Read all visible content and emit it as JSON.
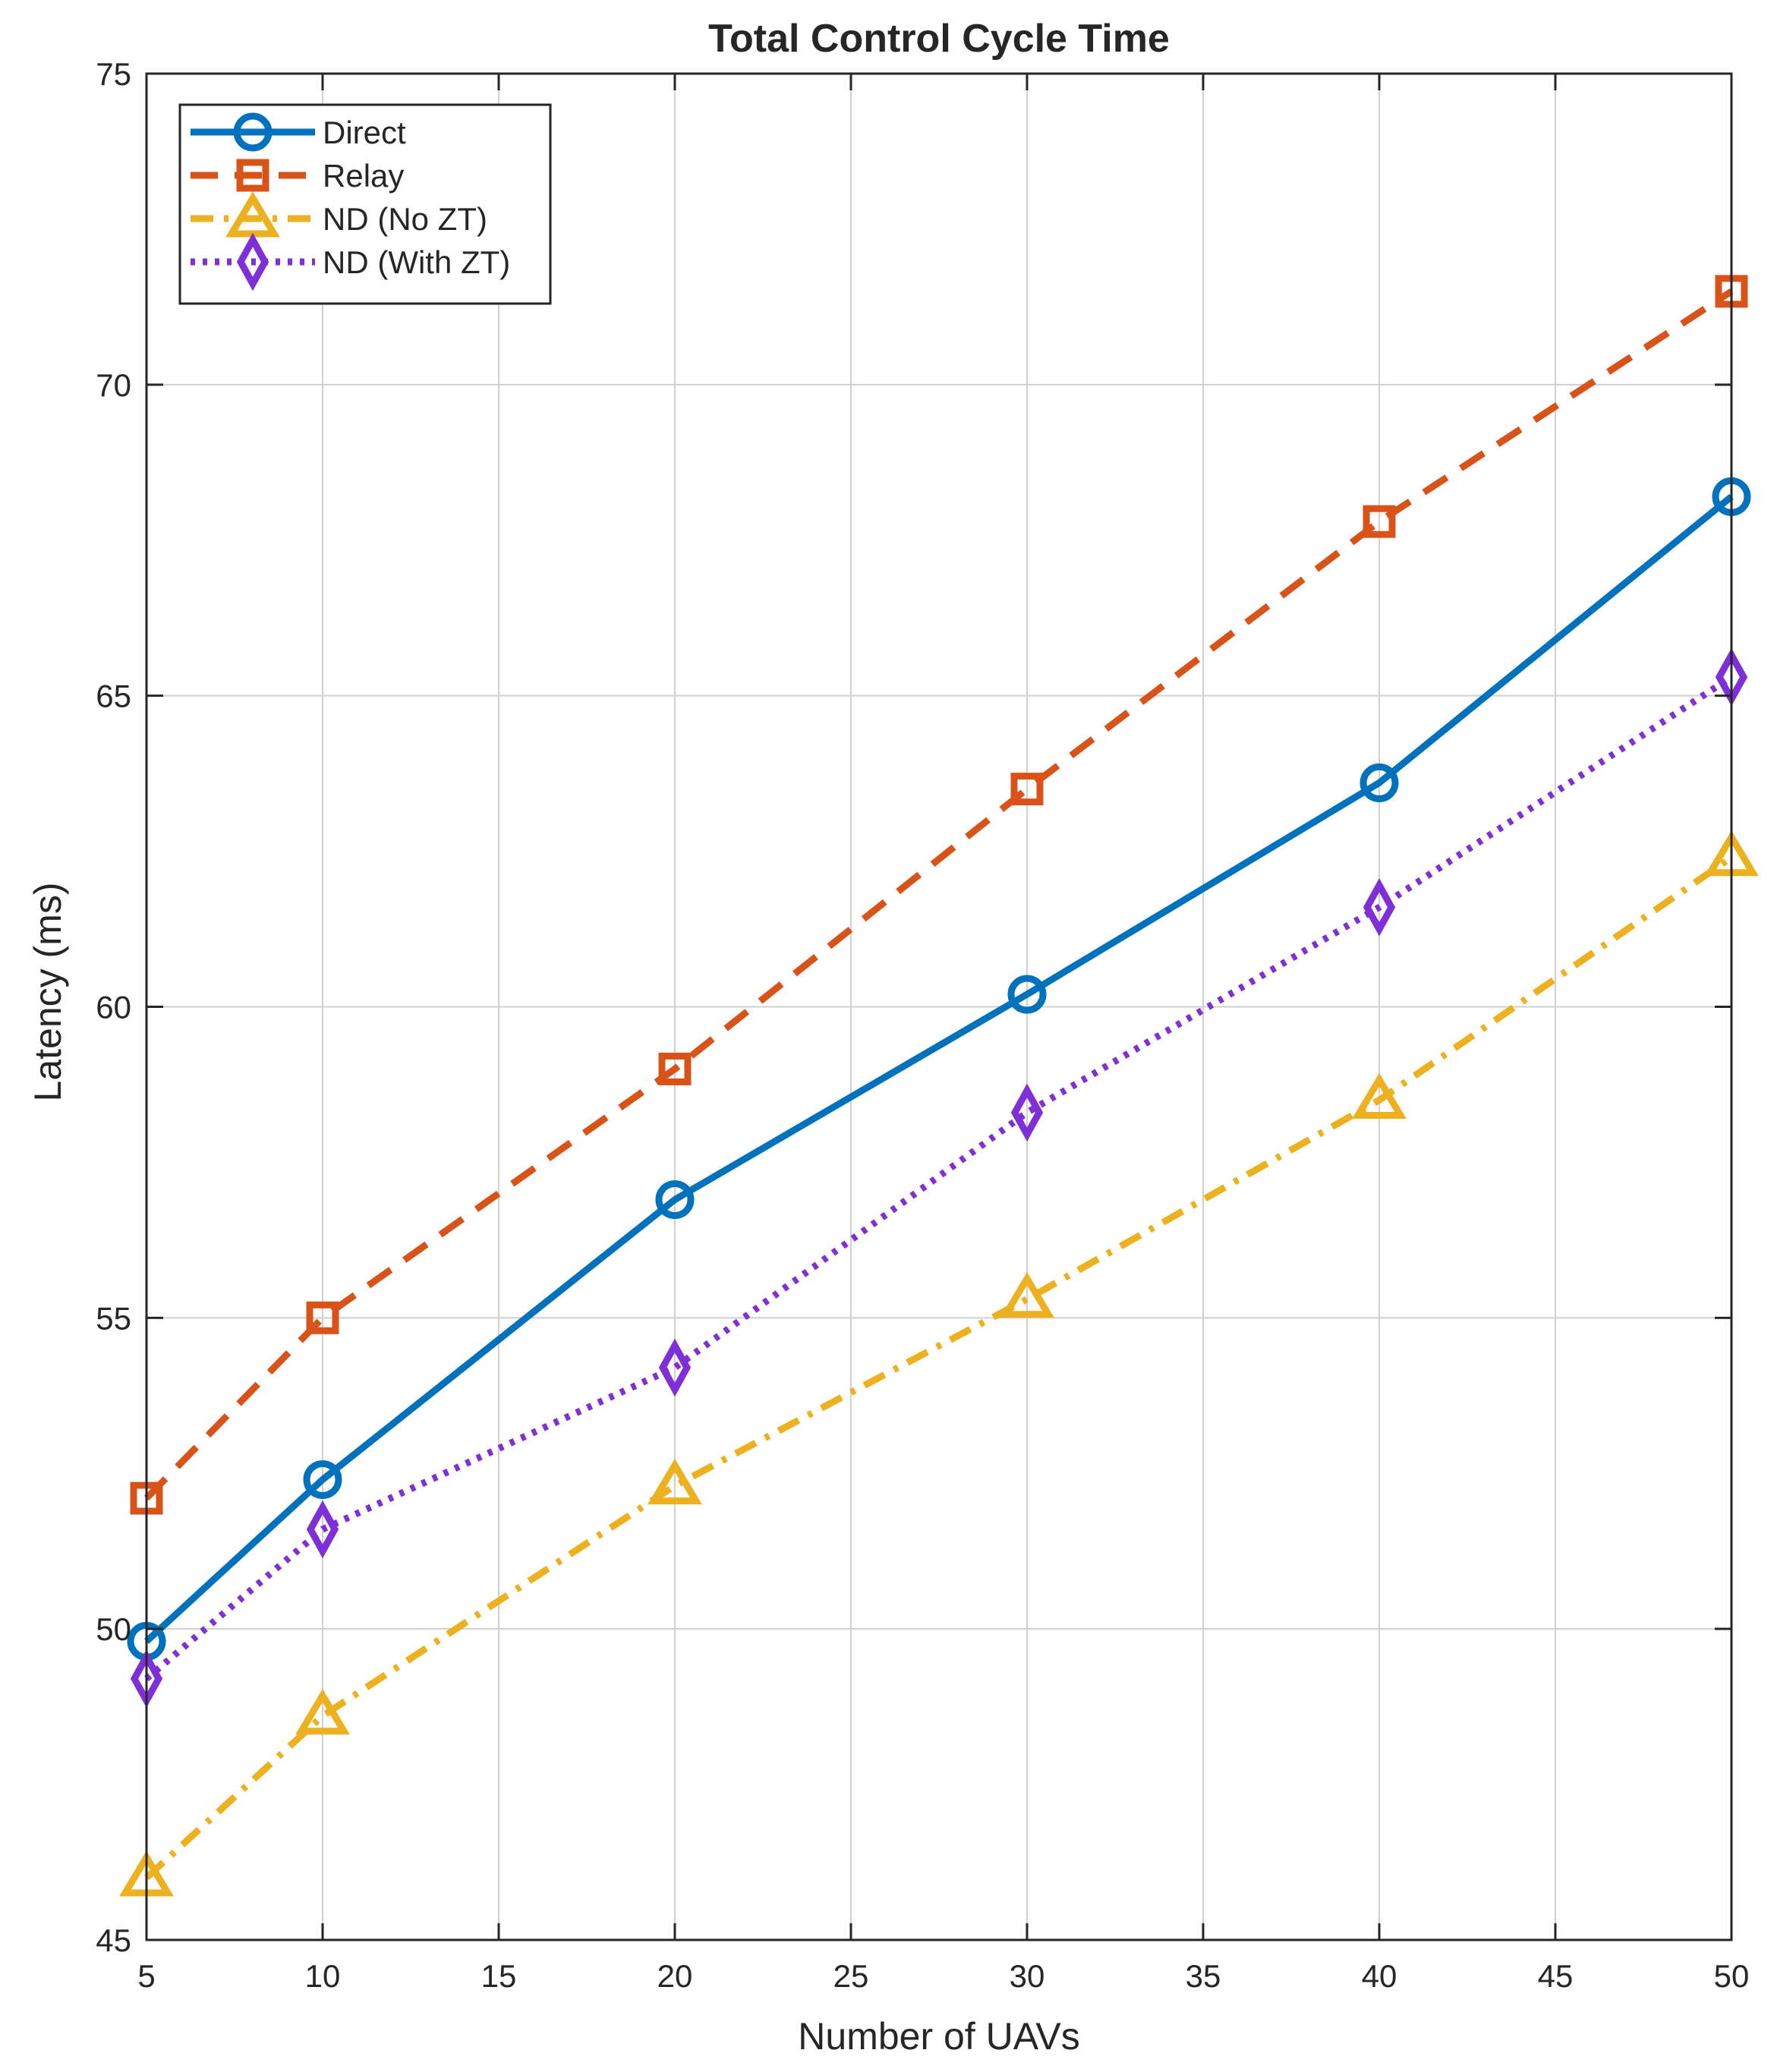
{
  "chart_data": {
    "type": "line",
    "title": "Total Control Cycle Time",
    "xlabel": "Number of UAVs",
    "ylabel": "Latency (ms)",
    "x": [
      5,
      10,
      20,
      30,
      40,
      50
    ],
    "xlim": [
      5,
      50
    ],
    "ylim": [
      45,
      75
    ],
    "xticks": [
      5,
      10,
      15,
      20,
      25,
      30,
      35,
      40,
      45,
      50
    ],
    "yticks": [
      45,
      50,
      55,
      60,
      65,
      70,
      75
    ],
    "grid": true,
    "legend_position": "top-left",
    "series": [
      {
        "name": "Direct",
        "values": [
          49.8,
          52.4,
          56.9,
          60.2,
          63.6,
          68.2
        ],
        "color": "#0072BD",
        "marker": "circle",
        "dash": "solid"
      },
      {
        "name": "Relay",
        "values": [
          52.1,
          55.0,
          59.0,
          63.5,
          67.8,
          71.5
        ],
        "color": "#D95319",
        "marker": "square",
        "dash": "dashed"
      },
      {
        "name": "ND (No ZT)",
        "values": [
          46.0,
          48.6,
          52.3,
          55.3,
          58.5,
          62.4
        ],
        "color": "#EDB120",
        "marker": "triangle",
        "dash": "dashdot"
      },
      {
        "name": "ND (With ZT)",
        "values": [
          49.2,
          51.6,
          54.2,
          58.3,
          61.6,
          65.3
        ],
        "color": "#7E2FD8",
        "marker": "diamond",
        "dash": "dotted"
      }
    ]
  }
}
